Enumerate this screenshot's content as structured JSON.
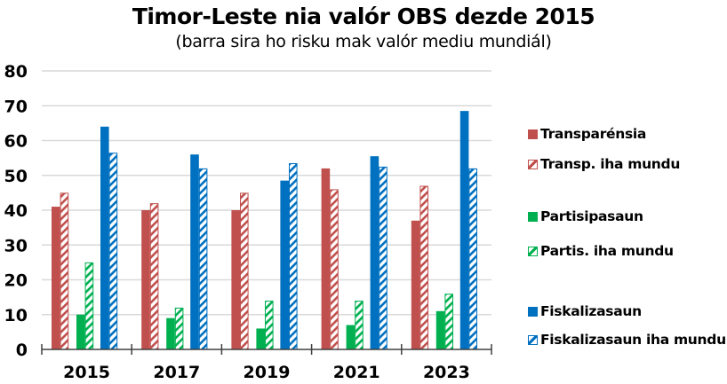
{
  "chart_data": {
    "type": "bar",
    "title": "Timor-Leste nia valór OBS dezde 2015",
    "subtitle": "(barra sira ho risku mak valór mediu mundiál)",
    "xlabel": "",
    "ylabel": "",
    "categories": [
      "2015",
      "2017",
      "2019",
      "2021",
      "2023"
    ],
    "ylim": [
      0,
      80
    ],
    "yticks": [
      0,
      10,
      20,
      30,
      40,
      50,
      60,
      70,
      80
    ],
    "grid": true,
    "legend_position": "right",
    "series": [
      {
        "name": "Transparénsia",
        "color": "#C0504D",
        "pattern": "solid",
        "values": [
          41,
          40,
          40,
          52,
          37
        ]
      },
      {
        "name": "Transp. iha mundu",
        "color": "#C0504D",
        "pattern": "hatched",
        "values": [
          45,
          42,
          45,
          46,
          47
        ]
      },
      {
        "name": "Partisipasaun",
        "color": "#00B050",
        "pattern": "solid",
        "values": [
          10,
          9,
          6,
          7,
          11
        ]
      },
      {
        "name": "Partis. iha mundu",
        "color": "#00B050",
        "pattern": "hatched",
        "values": [
          25,
          12,
          14,
          14,
          16
        ]
      },
      {
        "name": "Fiskalizasaun",
        "color": "#0070C0",
        "pattern": "solid",
        "values": [
          64,
          56,
          48.5,
          55.5,
          68.5
        ]
      },
      {
        "name": "Fiskalizasaun iha mundu",
        "color": "#0070C0",
        "pattern": "hatched",
        "values": [
          56.5,
          52,
          53.5,
          52.5,
          52
        ]
      }
    ]
  }
}
